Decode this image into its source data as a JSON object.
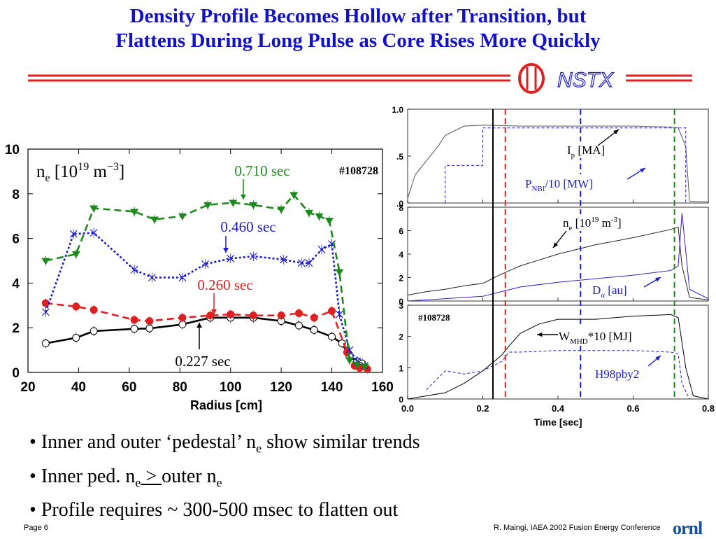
{
  "title": {
    "line1": "Density Profile Becomes Hollow after Transition, but",
    "line2": "Flattens During Long Pulse as Core Rises More Quickly"
  },
  "logo": {
    "text": "NSTX"
  },
  "colors": {
    "red": "#e02020",
    "blue": "#1a1ad0",
    "green": "#1a8a1a",
    "black": "#000000",
    "title_blue": "#1111cc"
  },
  "chart_data": [
    {
      "type": "line",
      "ylabel_prefix": "n",
      "ylabel_sub": "e",
      "ylabel_rest": " [10",
      "ylabel_sup1": "19",
      "ylabel_m": " m",
      "ylabel_sup2": "−3",
      "ylabel_end": "]",
      "shot": "#108728",
      "xlabel": "Radius [cm]",
      "xlim": [
        20,
        160
      ],
      "ylim": [
        0,
        10
      ],
      "xticks": [
        20,
        40,
        60,
        80,
        100,
        120,
        140,
        160
      ],
      "yticks": [
        0,
        2,
        4,
        6,
        8,
        10
      ],
      "series": [
        {
          "name": "0.227 sec",
          "color": "#000000",
          "dash": "solid",
          "marker": "open-circle",
          "x": [
            27,
            39,
            46,
            62,
            68,
            81,
            92,
            100,
            109,
            120,
            127,
            133,
            140,
            144,
            147,
            150,
            152
          ],
          "y": [
            1.3,
            1.55,
            1.85,
            1.95,
            1.97,
            2.15,
            2.45,
            2.45,
            2.45,
            2.3,
            2.1,
            1.9,
            1.6,
            1.3,
            0.7,
            0.5,
            0.4
          ]
        },
        {
          "name": "0.260 sec",
          "color": "#e02020",
          "dash": "dashed",
          "marker": "filled-circle",
          "x": [
            27,
            39,
            46,
            62,
            68,
            81,
            92,
            100,
            109,
            120,
            127,
            133,
            140,
            146,
            149,
            151,
            154
          ],
          "y": [
            3.1,
            2.95,
            2.8,
            2.35,
            2.3,
            2.45,
            2.55,
            2.6,
            2.55,
            2.55,
            2.65,
            2.45,
            2.75,
            0.9,
            0.3,
            0.2,
            0.15
          ]
        },
        {
          "name": "0.460 sec",
          "color": "#1a1ad0",
          "dash": "dotted",
          "marker": "x",
          "x": [
            27,
            38,
            46,
            62,
            69,
            81,
            90,
            100,
            109,
            121,
            128,
            131,
            136,
            140,
            143,
            147,
            150,
            153
          ],
          "y": [
            2.7,
            6.2,
            6.25,
            4.6,
            4.25,
            4.25,
            4.85,
            5.1,
            5.2,
            5.05,
            4.9,
            4.9,
            5.5,
            5.75,
            2.6,
            1.0,
            0.5,
            0.3
          ]
        },
        {
          "name": "0.710 sec",
          "color": "#1a8a1a",
          "dash": "dashed",
          "marker": "triangle-down",
          "x": [
            27,
            39,
            46,
            62,
            70,
            81,
            91,
            101,
            109,
            120,
            125,
            131,
            135,
            139,
            143,
            147,
            150,
            153
          ],
          "y": [
            5.0,
            5.3,
            7.35,
            7.2,
            6.85,
            7.0,
            7.5,
            7.6,
            7.5,
            7.3,
            7.95,
            7.15,
            7.0,
            6.8,
            4.5,
            0.55,
            0.35,
            0.25
          ]
        }
      ],
      "annotations": [
        {
          "text": "0.710 sec",
          "color": "#1a8a1a"
        },
        {
          "text": "0.460 sec",
          "color": "#1a1ad0"
        },
        {
          "text": "0.260 sec",
          "color": "#e02020"
        },
        {
          "text": "0.227 sec",
          "color": "#000000"
        }
      ]
    },
    {
      "type": "line",
      "panels": [
        {
          "yticks": [
            ".0",
            ".5",
            "1.0"
          ],
          "ylim": [
            0,
            1.0
          ],
          "labels": [
            {
              "text": "I",
              "sub": "p",
              "rest": " [MA]"
            },
            {
              "text": "P",
              "sub": "NBI",
              "rest": "/10 [MW]"
            }
          ]
        },
        {
          "yticks": [
            "0",
            "2",
            "4",
            "6",
            "8"
          ],
          "ylim": [
            0,
            8
          ],
          "labels": [
            {
              "text": "n",
              "sub": "e",
              "rest": " [10",
              "sup": "19",
              "rest2": " m",
              "sup2": "-3",
              "end": "]"
            },
            {
              "text": "D",
              "sub": "α",
              "rest": " [au]"
            }
          ]
        },
        {
          "yticks": [
            "0",
            "1",
            "2",
            "3"
          ],
          "ylim": [
            0,
            3
          ],
          "shot": "#108728",
          "labels": [
            {
              "text": "W",
              "sub": "MHD",
              "rest": "*10 [MJ]"
            },
            {
              "text": "H98pby2"
            }
          ]
        }
      ],
      "xlabel": "Time [sec]",
      "xlim": [
        0.0,
        0.8
      ],
      "xticks": [
        "0.0",
        "0.2",
        "0.4",
        "0.6",
        "0.8"
      ],
      "markers": [
        {
          "t": 0.227,
          "color": "#000000",
          "style": "solid"
        },
        {
          "t": 0.26,
          "color": "#e02020",
          "style": "dashed"
        },
        {
          "t": 0.46,
          "color": "#1a1ad0",
          "style": "dashed"
        },
        {
          "t": 0.71,
          "color": "#1a8a1a",
          "style": "dashed"
        }
      ],
      "traces": {
        "ip": {
          "t": [
            0,
            0.02,
            0.05,
            0.08,
            0.1,
            0.15,
            0.2,
            0.3,
            0.4,
            0.5,
            0.6,
            0.7,
            0.72,
            0.74,
            0.75,
            0.8
          ],
          "v": [
            0.05,
            0.3,
            0.45,
            0.6,
            0.72,
            0.82,
            0.83,
            0.82,
            0.82,
            0.82,
            0.82,
            0.81,
            0.8,
            0.6,
            0.02,
            0.01
          ]
        },
        "pnbi": {
          "t": [
            0.1,
            0.1,
            0.2,
            0.2,
            0.74,
            0.74
          ],
          "v": [
            0.0,
            0.4,
            0.4,
            0.8,
            0.8,
            0.0
          ]
        },
        "ne": {
          "t": [
            0,
            0.05,
            0.1,
            0.15,
            0.2,
            0.25,
            0.3,
            0.4,
            0.5,
            0.6,
            0.7,
            0.72,
            0.73,
            0.75,
            0.8
          ],
          "v": [
            0.5,
            0.8,
            1.0,
            1.3,
            1.5,
            2.3,
            3.0,
            4.0,
            4.8,
            5.4,
            6.1,
            6.3,
            3.0,
            0.3,
            0.1
          ]
        },
        "da": {
          "t": [
            0,
            0.1,
            0.2,
            0.25,
            0.3,
            0.4,
            0.5,
            0.6,
            0.7,
            0.72,
            0.73,
            0.75,
            0.8
          ],
          "v": [
            0.0,
            0.2,
            0.4,
            0.8,
            1.2,
            1.6,
            1.9,
            2.2,
            2.6,
            3.0,
            7.5,
            1.0,
            0.2
          ]
        },
        "wmhd": {
          "t": [
            0,
            0.05,
            0.1,
            0.15,
            0.2,
            0.25,
            0.27,
            0.3,
            0.35,
            0.4,
            0.5,
            0.6,
            0.7,
            0.72,
            0.74,
            0.76,
            0.8
          ],
          "v": [
            0.0,
            0.1,
            0.2,
            0.5,
            0.9,
            1.4,
            1.7,
            2.1,
            2.4,
            2.55,
            2.55,
            2.65,
            2.7,
            2.6,
            1.0,
            0.1,
            0.0
          ]
        },
        "h98": {
          "t": [
            0.05,
            0.1,
            0.15,
            0.2,
            0.25,
            0.27,
            0.3,
            0.4,
            0.5,
            0.6,
            0.7,
            0.72,
            0.73,
            0.75
          ],
          "v": [
            0.3,
            0.9,
            0.8,
            0.9,
            1.2,
            1.5,
            1.5,
            1.55,
            1.55,
            1.55,
            1.5,
            1.45,
            0.5,
            0.0
          ]
        }
      }
    }
  ],
  "bullets": [
    {
      "pre": "Inner and outer ‘pedestal’ n",
      "sub": "e",
      "post": " show similar trends"
    },
    {
      "pre": "Inner ped. n",
      "sub": "e",
      "mid": " > ",
      "post": "outer n",
      "sub2": "e"
    },
    {
      "pre": "Profile requires ~ 300-500 msec to flatten out"
    }
  ],
  "footer": {
    "page": "Page 6",
    "credit": "R. Maingi, IAEA 2002 Fusion Energy Conference",
    "logo": "ornl"
  }
}
